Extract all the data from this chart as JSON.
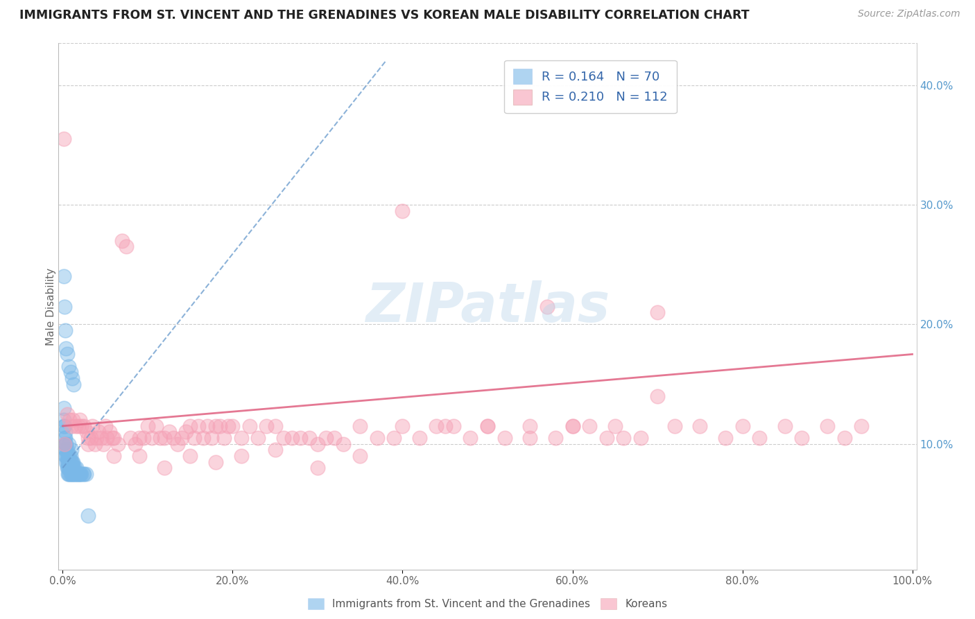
{
  "title": "IMMIGRANTS FROM ST. VINCENT AND THE GRENADINES VS KOREAN MALE DISABILITY CORRELATION CHART",
  "source_text": "Source: ZipAtlas.com",
  "ylabel": "Male Disability",
  "xlim": [
    -0.005,
    1.005
  ],
  "ylim": [
    -0.005,
    0.435
  ],
  "xticks": [
    0.0,
    0.2,
    0.4,
    0.6,
    0.8,
    1.0
  ],
  "xtick_labels": [
    "0.0%",
    "20.0%",
    "40.0%",
    "60.0%",
    "80.0%",
    "100.0%"
  ],
  "yticks_right": [
    0.1,
    0.2,
    0.3,
    0.4
  ],
  "ytick_labels_right": [
    "10.0%",
    "20.0%",
    "30.0%",
    "40.0%"
  ],
  "blue_color": "#7ab8e8",
  "pink_color": "#f5a0b5",
  "trend_blue_color": "#6699cc",
  "trend_pink_color": "#e06080",
  "watermark": "ZIPatlas",
  "legend_label1": "R = 0.164   N = 70",
  "legend_label2": "R = 0.210   N = 112",
  "blue_x": [
    0.001,
    0.001,
    0.001,
    0.002,
    0.002,
    0.002,
    0.003,
    0.003,
    0.003,
    0.003,
    0.003,
    0.004,
    0.004,
    0.004,
    0.004,
    0.005,
    0.005,
    0.005,
    0.005,
    0.006,
    0.006,
    0.006,
    0.006,
    0.007,
    0.007,
    0.007,
    0.007,
    0.008,
    0.008,
    0.008,
    0.009,
    0.009,
    0.009,
    0.009,
    0.01,
    0.01,
    0.01,
    0.01,
    0.011,
    0.011,
    0.011,
    0.012,
    0.012,
    0.012,
    0.013,
    0.013,
    0.014,
    0.014,
    0.015,
    0.016,
    0.016,
    0.017,
    0.018,
    0.019,
    0.02,
    0.021,
    0.022,
    0.024,
    0.025,
    0.027,
    0.001,
    0.002,
    0.003,
    0.004,
    0.005,
    0.007,
    0.009,
    0.011,
    0.013,
    0.03
  ],
  "blue_y": [
    0.115,
    0.12,
    0.13,
    0.1,
    0.105,
    0.115,
    0.09,
    0.095,
    0.1,
    0.105,
    0.11,
    0.085,
    0.09,
    0.095,
    0.1,
    0.08,
    0.085,
    0.09,
    0.095,
    0.075,
    0.08,
    0.085,
    0.09,
    0.075,
    0.08,
    0.085,
    0.1,
    0.075,
    0.08,
    0.09,
    0.075,
    0.08,
    0.085,
    0.09,
    0.075,
    0.08,
    0.085,
    0.095,
    0.075,
    0.08,
    0.085,
    0.075,
    0.08,
    0.085,
    0.075,
    0.08,
    0.075,
    0.08,
    0.075,
    0.075,
    0.08,
    0.075,
    0.075,
    0.075,
    0.075,
    0.075,
    0.075,
    0.075,
    0.075,
    0.075,
    0.24,
    0.215,
    0.195,
    0.18,
    0.175,
    0.165,
    0.16,
    0.155,
    0.15,
    0.04
  ],
  "pink_x": [
    0.005,
    0.008,
    0.01,
    0.012,
    0.015,
    0.018,
    0.02,
    0.022,
    0.025,
    0.028,
    0.03,
    0.033,
    0.035,
    0.038,
    0.04,
    0.042,
    0.045,
    0.048,
    0.05,
    0.052,
    0.055,
    0.058,
    0.06,
    0.065,
    0.07,
    0.075,
    0.08,
    0.085,
    0.09,
    0.095,
    0.1,
    0.105,
    0.11,
    0.115,
    0.12,
    0.125,
    0.13,
    0.135,
    0.14,
    0.145,
    0.15,
    0.155,
    0.16,
    0.165,
    0.17,
    0.175,
    0.18,
    0.185,
    0.19,
    0.195,
    0.2,
    0.21,
    0.22,
    0.23,
    0.24,
    0.25,
    0.26,
    0.27,
    0.28,
    0.29,
    0.3,
    0.31,
    0.32,
    0.33,
    0.35,
    0.37,
    0.39,
    0.4,
    0.42,
    0.44,
    0.46,
    0.48,
    0.5,
    0.52,
    0.55,
    0.57,
    0.58,
    0.6,
    0.62,
    0.64,
    0.66,
    0.68,
    0.7,
    0.72,
    0.75,
    0.78,
    0.8,
    0.82,
    0.85,
    0.87,
    0.9,
    0.92,
    0.94,
    0.03,
    0.06,
    0.09,
    0.12,
    0.15,
    0.18,
    0.21,
    0.25,
    0.3,
    0.35,
    0.4,
    0.45,
    0.5,
    0.55,
    0.6,
    0.65,
    0.7,
    0.001,
    0.002
  ],
  "pink_y": [
    0.125,
    0.12,
    0.115,
    0.12,
    0.115,
    0.115,
    0.12,
    0.115,
    0.115,
    0.11,
    0.105,
    0.105,
    0.115,
    0.1,
    0.105,
    0.11,
    0.105,
    0.1,
    0.115,
    0.105,
    0.11,
    0.105,
    0.105,
    0.1,
    0.27,
    0.265,
    0.105,
    0.1,
    0.105,
    0.105,
    0.115,
    0.105,
    0.115,
    0.105,
    0.105,
    0.11,
    0.105,
    0.1,
    0.105,
    0.11,
    0.115,
    0.105,
    0.115,
    0.105,
    0.115,
    0.105,
    0.115,
    0.115,
    0.105,
    0.115,
    0.115,
    0.105,
    0.115,
    0.105,
    0.115,
    0.115,
    0.105,
    0.105,
    0.105,
    0.105,
    0.1,
    0.105,
    0.105,
    0.1,
    0.115,
    0.105,
    0.105,
    0.295,
    0.105,
    0.115,
    0.115,
    0.105,
    0.115,
    0.105,
    0.105,
    0.215,
    0.105,
    0.115,
    0.115,
    0.105,
    0.105,
    0.105,
    0.21,
    0.115,
    0.115,
    0.105,
    0.115,
    0.105,
    0.115,
    0.105,
    0.115,
    0.105,
    0.115,
    0.1,
    0.09,
    0.09,
    0.08,
    0.09,
    0.085,
    0.09,
    0.095,
    0.08,
    0.09,
    0.115,
    0.115,
    0.115,
    0.115,
    0.115,
    0.115,
    0.14,
    0.355,
    0.1
  ],
  "blue_trend_x0": 0.0,
  "blue_trend_y0": 0.08,
  "blue_trend_x1": 0.38,
  "blue_trend_y1": 0.42,
  "pink_trend_x0": 0.0,
  "pink_trend_y0": 0.115,
  "pink_trend_x1": 1.0,
  "pink_trend_y1": 0.175
}
